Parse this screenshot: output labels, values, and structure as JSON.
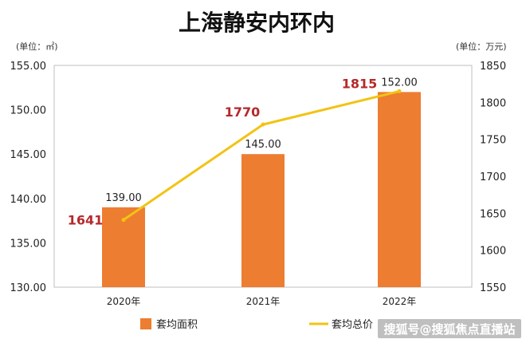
{
  "chart_data": {
    "type": "bar",
    "title": "上海静安内环内",
    "categories": [
      "2020年",
      "2021年",
      "2022年"
    ],
    "left_axis_unit": "(单位：㎡)",
    "right_axis_unit": "(单位：万元)",
    "left_ylim": [
      130,
      155
    ],
    "left_ticks": [
      "130.00",
      "135.00",
      "140.00",
      "145.00",
      "150.00",
      "155.00"
    ],
    "right_ylim": [
      1550,
      1850
    ],
    "right_ticks": [
      "1550",
      "1600",
      "1650",
      "1700",
      "1750",
      "1800",
      "1850"
    ],
    "series": [
      {
        "name": "套均面积",
        "type": "bar",
        "axis": "left",
        "values": [
          139.0,
          145.0,
          152.0
        ],
        "labels": [
          "139.00",
          "145.00",
          "152.00"
        ],
        "color": "#ed7d31"
      },
      {
        "name": "套均总价",
        "type": "line",
        "axis": "right",
        "values": [
          1641,
          1770,
          1815
        ],
        "labels": [
          "1641",
          "1770",
          "1815"
        ],
        "color": "#f2c314",
        "label_color": "#b5292a"
      }
    ],
    "grid": false,
    "legend": "bottom"
  },
  "watermark": "搜狐号@搜狐焦点直播站"
}
